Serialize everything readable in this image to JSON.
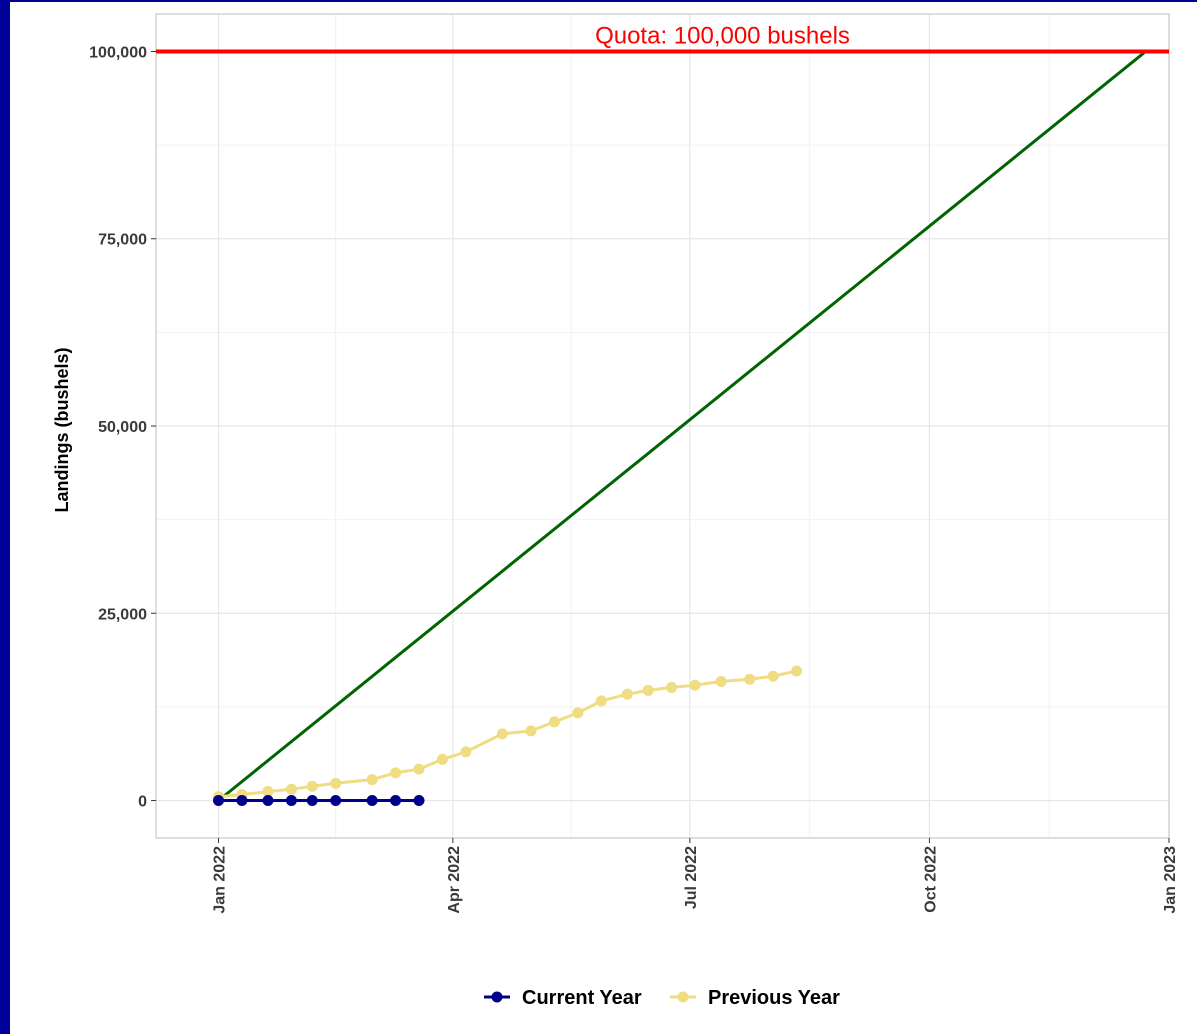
{
  "chart_data": {
    "type": "line",
    "title": "",
    "xlabel": "",
    "ylabel": "Landings (bushels)",
    "xlim": [
      "2021-12-08",
      "2023-01-01"
    ],
    "ylim": [
      -5000,
      105000
    ],
    "y_ticks": [
      0,
      25000,
      50000,
      75000,
      100000
    ],
    "y_tick_labels": [
      "0",
      "25,000",
      "50,000",
      "75,000",
      "100,000"
    ],
    "x_ticks": [
      "2022-01-01",
      "2022-04-01",
      "2022-07-01",
      "2022-10-01",
      "2023-01-01"
    ],
    "x_tick_labels": [
      "Jan 2022",
      "Apr 2022",
      "Jul 2022",
      "Oct 2022",
      "Jan 2023"
    ],
    "grid": true,
    "legend_position": "bottom",
    "quota": {
      "value": 100000,
      "label": "Quota: 100,000 bushels",
      "color": "#ff0000"
    },
    "series": [
      {
        "name": "Current Year",
        "color": "#00008b",
        "markers": true,
        "points": [
          {
            "x": "2022-01-01",
            "y": 0
          },
          {
            "x": "2022-01-10",
            "y": 0
          },
          {
            "x": "2022-01-20",
            "y": 0
          },
          {
            "x": "2022-01-29",
            "y": 0
          },
          {
            "x": "2022-02-06",
            "y": 0
          },
          {
            "x": "2022-02-15",
            "y": 0
          },
          {
            "x": "2022-03-01",
            "y": 0
          },
          {
            "x": "2022-03-10",
            "y": 0
          },
          {
            "x": "2022-03-19",
            "y": 0
          }
        ]
      },
      {
        "name": "Previous Year",
        "color": "#f0dc82",
        "markers": true,
        "points": [
          {
            "x": "2022-01-01",
            "y": 500
          },
          {
            "x": "2022-01-10",
            "y": 800
          },
          {
            "x": "2022-01-20",
            "y": 1200
          },
          {
            "x": "2022-01-29",
            "y": 1500
          },
          {
            "x": "2022-02-06",
            "y": 1900
          },
          {
            "x": "2022-02-15",
            "y": 2300
          },
          {
            "x": "2022-03-01",
            "y": 2800
          },
          {
            "x": "2022-03-10",
            "y": 3700
          },
          {
            "x": "2022-03-19",
            "y": 4200
          },
          {
            "x": "2022-03-28",
            "y": 5500
          },
          {
            "x": "2022-04-06",
            "y": 6500
          },
          {
            "x": "2022-04-20",
            "y": 8900
          },
          {
            "x": "2022-05-01",
            "y": 9300
          },
          {
            "x": "2022-05-10",
            "y": 10500
          },
          {
            "x": "2022-05-19",
            "y": 11700
          },
          {
            "x": "2022-05-28",
            "y": 13300
          },
          {
            "x": "2022-06-07",
            "y": 14200
          },
          {
            "x": "2022-06-15",
            "y": 14700
          },
          {
            "x": "2022-06-24",
            "y": 15100
          },
          {
            "x": "2022-07-03",
            "y": 15400
          },
          {
            "x": "2022-07-13",
            "y": 15900
          },
          {
            "x": "2022-07-24",
            "y": 16200
          },
          {
            "x": "2022-08-02",
            "y": 16600
          },
          {
            "x": "2022-08-11",
            "y": 17300
          }
        ]
      },
      {
        "name": "",
        "color": "#006400",
        "markers": false,
        "points": [
          {
            "x": "2022-01-01",
            "y": 0
          },
          {
            "x": "2022-12-23",
            "y": 100000
          }
        ]
      }
    ]
  }
}
